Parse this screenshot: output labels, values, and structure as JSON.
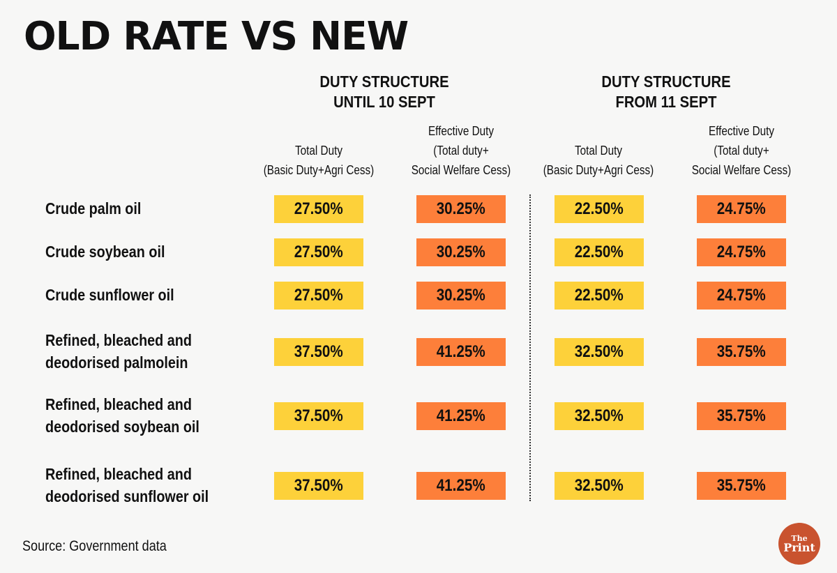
{
  "title": "OLD RATE VS NEW",
  "groups": [
    {
      "line1": "DUTY STRUCTURE",
      "line2": "UNTIL 10 SEPT"
    },
    {
      "line1": "DUTY STRUCTURE",
      "line2": "FROM 11 SEPT"
    }
  ],
  "columns": [
    {
      "line1": "",
      "line2": "Total Duty",
      "line3": "(Basic Duty+Agri Cess)"
    },
    {
      "line1": "Effective Duty",
      "line2": "(Total duty+",
      "line3": "Social Welfare Cess)"
    },
    {
      "line1": "",
      "line2": "Total Duty",
      "line3": "(Basic Duty+Agri Cess)"
    },
    {
      "line1": "Effective Duty",
      "line2": "(Total duty+",
      "line3": "Social Welfare Cess)"
    }
  ],
  "colors": {
    "total_duty": "#fdd13a",
    "effective_duty": "#fd7f3a",
    "logo": "#c9532f"
  },
  "rows": [
    {
      "label1": "Crude palm oil",
      "label2": "",
      "values": [
        "27.50%",
        "30.25%",
        "22.50%",
        "24.75%"
      ]
    },
    {
      "label1": "Crude soybean oil",
      "label2": "",
      "values": [
        "27.50%",
        "30.25%",
        "22.50%",
        "24.75%"
      ]
    },
    {
      "label1": "Crude sunflower oil",
      "label2": "",
      "values": [
        "27.50%",
        "30.25%",
        "22.50%",
        "24.75%"
      ]
    },
    {
      "label1": "Refined, bleached and",
      "label2": "deodorised palmolein",
      "values": [
        "37.50%",
        "41.25%",
        "32.50%",
        "35.75%"
      ]
    },
    {
      "label1": "Refined, bleached and",
      "label2": "deodorised soybean oil",
      "values": [
        "37.50%",
        "41.25%",
        "32.50%",
        "35.75%"
      ]
    },
    {
      "label1": "Refined, bleached and",
      "label2": "deodorised sunflower oil",
      "values": [
        "37.50%",
        "41.25%",
        "32.50%",
        "35.75%"
      ]
    }
  ],
  "source": "Source: Government data",
  "logo": {
    "line1": "The",
    "line2": "Print"
  },
  "chart_data": {
    "type": "table",
    "title": "OLD RATE VS NEW",
    "column_groups": [
      "DUTY STRUCTURE UNTIL 10 SEPT",
      "DUTY STRUCTURE FROM 11 SEPT"
    ],
    "columns": [
      "Total Duty (Basic Duty+Agri Cess) until 10 Sept",
      "Effective Duty (Total duty+ Social Welfare Cess) until 10 Sept",
      "Total Duty (Basic Duty+Agri Cess) from 11 Sept",
      "Effective Duty (Total duty+ Social Welfare Cess) from 11 Sept"
    ],
    "categories": [
      "Crude palm oil",
      "Crude soybean oil",
      "Crude sunflower oil",
      "Refined, bleached and deodorised palmolein",
      "Refined, bleached and deodorised soybean oil",
      "Refined, bleached and deodorised sunflower oil"
    ],
    "values": [
      [
        27.5,
        30.25,
        22.5,
        24.75
      ],
      [
        27.5,
        30.25,
        22.5,
        24.75
      ],
      [
        27.5,
        30.25,
        22.5,
        24.75
      ],
      [
        37.5,
        41.25,
        32.5,
        35.75
      ],
      [
        37.5,
        41.25,
        32.5,
        35.75
      ],
      [
        37.5,
        41.25,
        32.5,
        35.75
      ]
    ],
    "unit": "%"
  }
}
